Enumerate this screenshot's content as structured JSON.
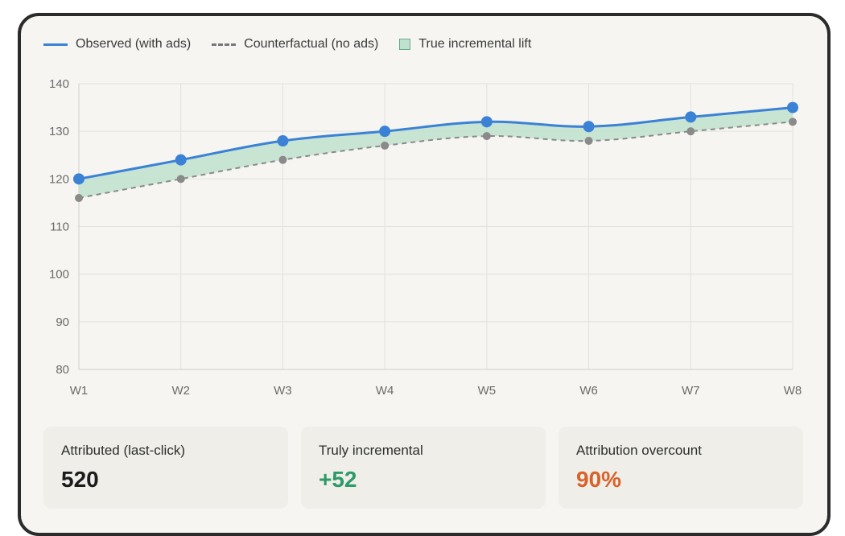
{
  "legend": {
    "observed": "Observed (with ads)",
    "counterfactual": "Counterfactual (no ads)",
    "lift": "True incremental lift"
  },
  "colors": {
    "observed": "#3b82d6",
    "counterfactual": "#8a8a8a",
    "lift_fill": "#bfe2cf",
    "positive": "#2d9a68",
    "negative": "#d9622b"
  },
  "chart_data": {
    "type": "line",
    "categories": [
      "W1",
      "W2",
      "W3",
      "W4",
      "W5",
      "W6",
      "W7",
      "W8"
    ],
    "series": [
      {
        "name": "Observed (with ads)",
        "values": [
          120,
          124,
          128,
          130,
          132,
          131,
          133,
          135
        ]
      },
      {
        "name": "Counterfactual (no ads)",
        "values": [
          116,
          120,
          124,
          127,
          129,
          128,
          130,
          132
        ]
      }
    ],
    "shaded_area": "True incremental lift",
    "ylim": [
      80,
      140
    ],
    "yticks": [
      80,
      90,
      100,
      110,
      120,
      130,
      140
    ],
    "grid": true,
    "legend_position": "top-left"
  },
  "metrics": [
    {
      "label": "Attributed (last-click)",
      "value": "520"
    },
    {
      "label": "Truly incremental",
      "value": "+52"
    },
    {
      "label": "Attribution overcount",
      "value": "90%"
    }
  ]
}
